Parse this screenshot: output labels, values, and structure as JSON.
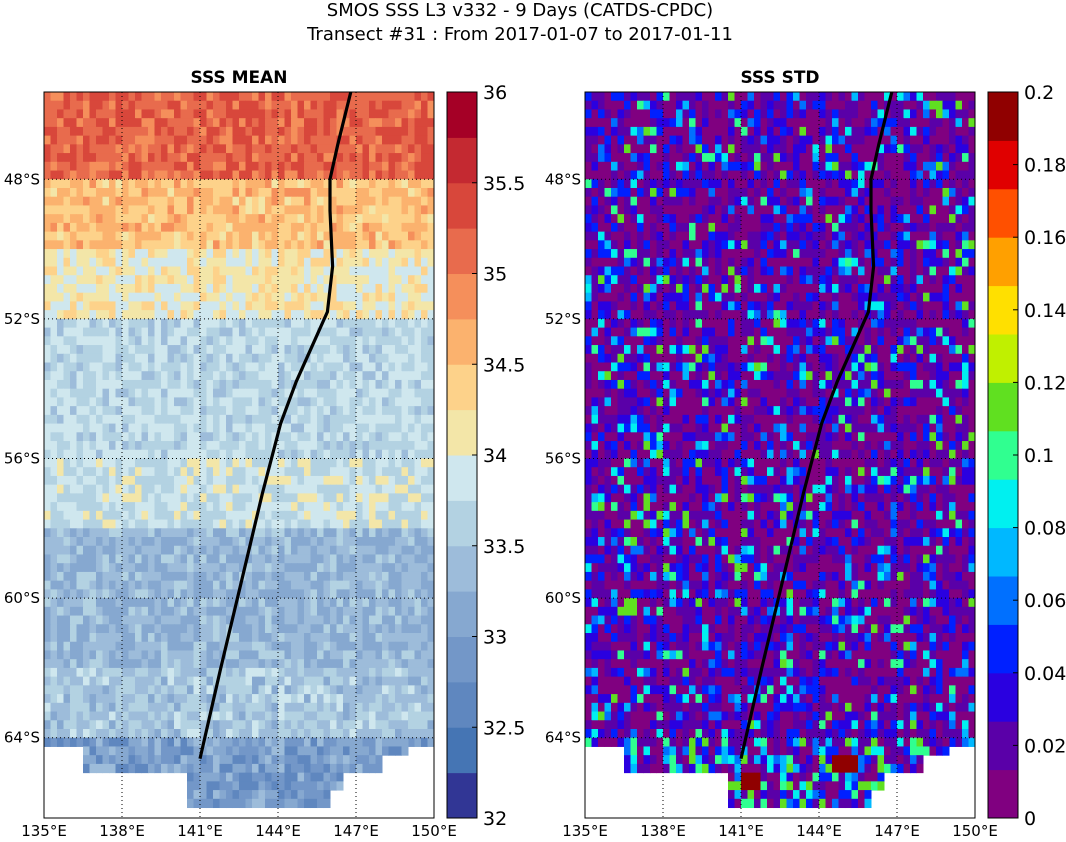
{
  "figure": {
    "title_line1": "SMOS SSS L3 v332 - 9 Days (CATDS-CPDC)",
    "title_line2": "Transect #31 : From 2017-01-07 to 2017-01-11"
  },
  "chart_data": [
    {
      "type": "heatmap",
      "title": "SSS MEAN",
      "xlabel": "",
      "ylabel": "",
      "xlim": [
        135,
        150
      ],
      "ylim": [
        -66.3,
        -45.5
      ],
      "x_ticks": [
        135,
        138,
        141,
        144,
        147,
        150
      ],
      "x_tick_labels": [
        "135°E",
        "138°E",
        "141°E",
        "144°E",
        "147°E",
        "150°E"
      ],
      "y_ticks": [
        -48,
        -52,
        -56,
        -60,
        -64
      ],
      "y_tick_labels": [
        "48°S",
        "52°S",
        "56°S",
        "60°S",
        "64°S"
      ],
      "grid": true,
      "colorbar": {
        "min": 32,
        "max": 36,
        "ticks": [
          32,
          32.5,
          33,
          33.5,
          34,
          34.5,
          35,
          35.5,
          36
        ],
        "tick_labels": [
          "32",
          "32.5",
          "33",
          "33.5",
          "34",
          "34.5",
          "35",
          "35.5",
          "36"
        ],
        "colormap": "RdYlBu_r (discrete)",
        "colors": [
          "#313695",
          "#4575b4",
          "#5f87bf",
          "#7397c8",
          "#86a8d0",
          "#9dbcda",
          "#b3d2e2",
          "#cfe7ee",
          "#f3e6a8",
          "#fdd28a",
          "#fbb26e",
          "#f58f5b",
          "#e86b4d",
          "#d8473b",
          "#c42931",
          "#a50026"
        ]
      },
      "field_description": "Salinity ~35 to 35.7 at 46-48°S, ~34 to 34.5 at 48-52°S, ~33.3 to 34 at 52-58°S, ~32.8 to 33.6 at 58-64°S; land/no data south of 64°S",
      "lat_bands": [
        {
          "lat_from": -45.5,
          "lat_to": -48,
          "mean": 35.2
        },
        {
          "lat_from": -48,
          "lat_to": -50,
          "mean": 34.5
        },
        {
          "lat_from": -50,
          "lat_to": -52,
          "mean": 34.1
        },
        {
          "lat_from": -52,
          "lat_to": -56,
          "mean": 33.7
        },
        {
          "lat_from": -56,
          "lat_to": -58,
          "mean": 33.8
        },
        {
          "lat_from": -58,
          "lat_to": -62,
          "mean": 33.3
        },
        {
          "lat_from": -62,
          "lat_to": -64,
          "mean": 33.5
        },
        {
          "lat_from": -64,
          "lat_to": -66,
          "mean": 32.8
        }
      ]
    },
    {
      "type": "heatmap",
      "title": "SSS STD",
      "xlabel": "",
      "ylabel": "",
      "xlim": [
        135,
        150
      ],
      "ylim": [
        -66.3,
        -45.5
      ],
      "x_ticks": [
        135,
        138,
        141,
        144,
        147,
        150
      ],
      "x_tick_labels": [
        "135°E",
        "138°E",
        "141°E",
        "144°E",
        "147°E",
        "150°E"
      ],
      "y_ticks": [
        -48,
        -52,
        -56,
        -60,
        -64
      ],
      "y_tick_labels": [
        "48°S",
        "52°S",
        "56°S",
        "60°S",
        "64°S"
      ],
      "grid": true,
      "colorbar": {
        "min": 0,
        "max": 0.2,
        "ticks": [
          0,
          0.02,
          0.04,
          0.06,
          0.08,
          0.1,
          0.12,
          0.14,
          0.16,
          0.18,
          0.2
        ],
        "tick_labels": [
          "0",
          "0.02",
          "0.04",
          "0.06",
          "0.08",
          "0.1",
          "0.12",
          "0.14",
          "0.16",
          "0.18",
          "0.2"
        ],
        "colormap": "jet-like (purple to dark red)",
        "colors": [
          "#800080",
          "#5a00a8",
          "#2a00e0",
          "#0020ff",
          "#0070ff",
          "#00b8ff",
          "#00f0f0",
          "#30ff90",
          "#60e020",
          "#c0f000",
          "#ffe000",
          "#ffa000",
          "#ff5000",
          "#e00000",
          "#900000"
        ]
      },
      "field_description": "Mostly 0 to 0.04 (purple/blue), scattered cells 0.06-0.12 (cyan/green/yellow), a few 0.16-0.2 cells near 64-65°S",
      "typical_range": [
        0,
        0.12
      ],
      "max_values_near_lat": -64.5
    }
  ],
  "transect": {
    "description": "Ship transect line from about 141°E 64.5°S northward to about 146.8°E 45.5°S",
    "lon": [
      141.0,
      141.8,
      142.6,
      143.4,
      144.1,
      144.7,
      145.3,
      145.9,
      146.1,
      146.0,
      146.0,
      146.3,
      146.8
    ],
    "lat": [
      -64.6,
      -62.0,
      -59.5,
      -57.0,
      -55.0,
      -53.8,
      -52.8,
      -51.8,
      -50.5,
      -48.9,
      -48.0,
      -47.0,
      -45.5
    ],
    "color": "#000000"
  },
  "land": {
    "color": "#ffffff",
    "note": "white area south of ~64°S with partial coverage strips"
  }
}
